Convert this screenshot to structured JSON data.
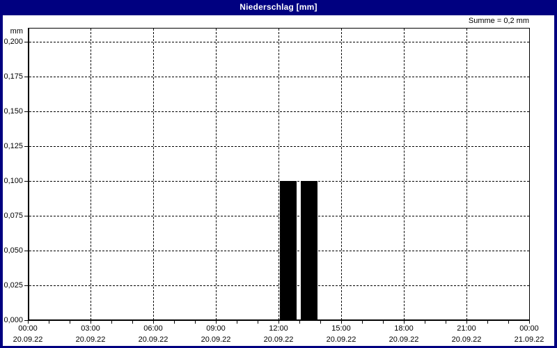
{
  "title_bar": {
    "title": "Niederschlag [mm]"
  },
  "summary": "Summe = 0,2 mm",
  "colors": {
    "frame": "#000080",
    "title_text": "#ffffff",
    "plot_background": "#ffffff",
    "axis": "#000000",
    "grid": "#000000",
    "bar": "#000000"
  },
  "chart_data": {
    "type": "bar",
    "title": "Niederschlag [mm]",
    "sum_label": "Summe = 0,2 mm",
    "ylabel": "mm",
    "ylim": [
      0,
      0.21
    ],
    "grid": true,
    "y_tick_values": [
      0,
      0.025,
      0.05,
      0.075,
      0.1,
      0.125,
      0.15,
      0.175,
      0.2
    ],
    "y_tick_labels": [
      "0,000",
      "0,025",
      "0,050",
      "0,075",
      "0,100",
      "0,125",
      "0,150",
      "0,175",
      "0,200"
    ],
    "x_total_hours": 24,
    "x_minor_step_hours": 1,
    "x_major_step_hours": 3,
    "x_major_labels": [
      {
        "time": "00:00",
        "date": "20.09.22"
      },
      {
        "time": "03:00",
        "date": "20.09.22"
      },
      {
        "time": "06:00",
        "date": "20.09.22"
      },
      {
        "time": "09:00",
        "date": "20.09.22"
      },
      {
        "time": "12:00",
        "date": "20.09.22"
      },
      {
        "time": "15:00",
        "date": "20.09.22"
      },
      {
        "time": "18:00",
        "date": "20.09.22"
      },
      {
        "time": "21:00",
        "date": "20.09.22"
      },
      {
        "time": "00:00",
        "date": "21.09.22"
      }
    ],
    "bars": [
      {
        "start_hour": 12,
        "end_hour": 13,
        "value": 0.1
      },
      {
        "start_hour": 13,
        "end_hour": 14,
        "value": 0.1
      }
    ]
  }
}
